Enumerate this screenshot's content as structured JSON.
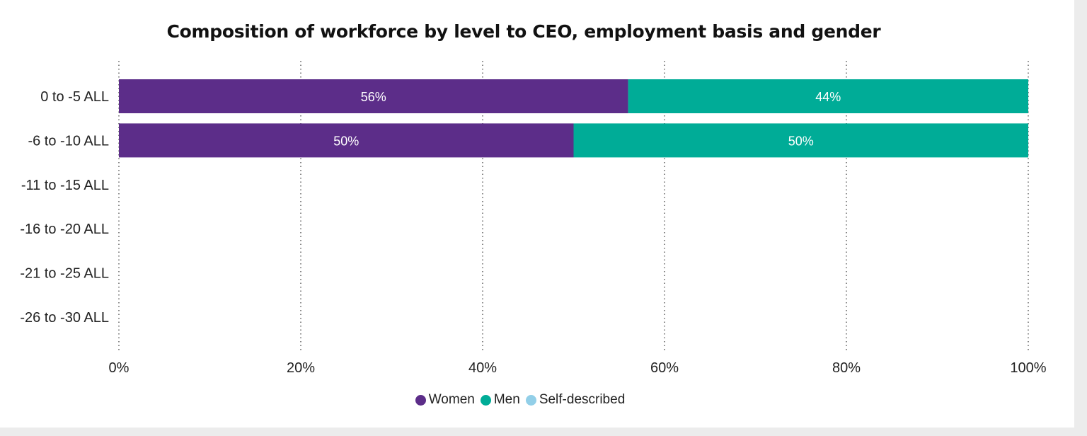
{
  "chart_data": {
    "type": "bar",
    "orientation": "horizontal",
    "stacked": "percent",
    "title": "Composition of workforce by level to CEO, employment basis and gender",
    "categories": [
      "0 to -5 ALL",
      "-6 to -10 ALL",
      "-11 to -15 ALL",
      "-16 to -20 ALL",
      "-21 to -25 ALL",
      "-26 to -30 ALL"
    ],
    "series": [
      {
        "name": "Women",
        "color": "#5c2d89",
        "values": [
          56,
          50,
          null,
          null,
          null,
          null
        ],
        "labels": [
          "56%",
          "50%",
          "",
          "",
          "",
          ""
        ]
      },
      {
        "name": "Men",
        "color": "#00ac97",
        "values": [
          44,
          50,
          null,
          null,
          null,
          null
        ],
        "labels": [
          "44%",
          "50%",
          "",
          "",
          "",
          ""
        ]
      },
      {
        "name": "Self-described",
        "color": "#92cfe8",
        "values": [
          0,
          0,
          null,
          null,
          null,
          null
        ],
        "labels": [
          "",
          "",
          "",
          "",
          "",
          ""
        ]
      }
    ],
    "xlim": [
      0,
      100
    ],
    "x_ticks": [
      "0%",
      "20%",
      "40%",
      "60%",
      "80%",
      "100%"
    ],
    "grid": true,
    "legend_position": "bottom-center"
  }
}
